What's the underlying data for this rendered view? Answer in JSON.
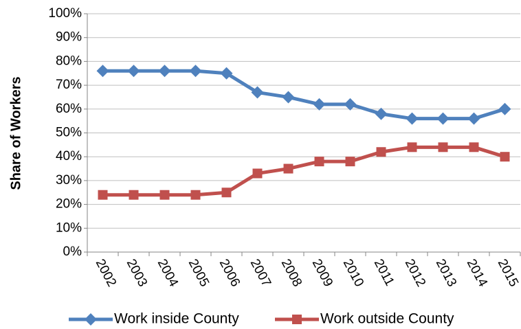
{
  "chart_data": {
    "type": "line",
    "y_label": "Share of Workers",
    "categories": [
      "2002",
      "2003",
      "2004",
      "2005",
      "2006",
      "2007",
      "2008",
      "2009",
      "2010",
      "2011",
      "2012",
      "2013",
      "2014",
      "2015"
    ],
    "series": [
      {
        "name": "Work inside County",
        "color": "#4f81bd",
        "marker": "diamond",
        "values": [
          76,
          76,
          76,
          76,
          75,
          67,
          65,
          62,
          62,
          58,
          56,
          56,
          56,
          60
        ]
      },
      {
        "name": "Work outside County",
        "color": "#c0504d",
        "marker": "square",
        "values": [
          24,
          24,
          24,
          24,
          25,
          33,
          35,
          38,
          38,
          42,
          44,
          44,
          44,
          40
        ]
      }
    ],
    "ylim": [
      0,
      100
    ],
    "yticks": [
      {
        "value": 0,
        "label": "0%"
      },
      {
        "value": 10,
        "label": "10%"
      },
      {
        "value": 20,
        "label": "20%"
      },
      {
        "value": 30,
        "label": "30%"
      },
      {
        "value": 40,
        "label": "40%"
      },
      {
        "value": 50,
        "label": "50%"
      },
      {
        "value": 60,
        "label": "60%"
      },
      {
        "value": 70,
        "label": "70%"
      },
      {
        "value": 80,
        "label": "80%"
      },
      {
        "value": 90,
        "label": "90%"
      },
      {
        "value": 100,
        "label": "100%"
      }
    ],
    "grid": true,
    "legend": "bottom"
  }
}
